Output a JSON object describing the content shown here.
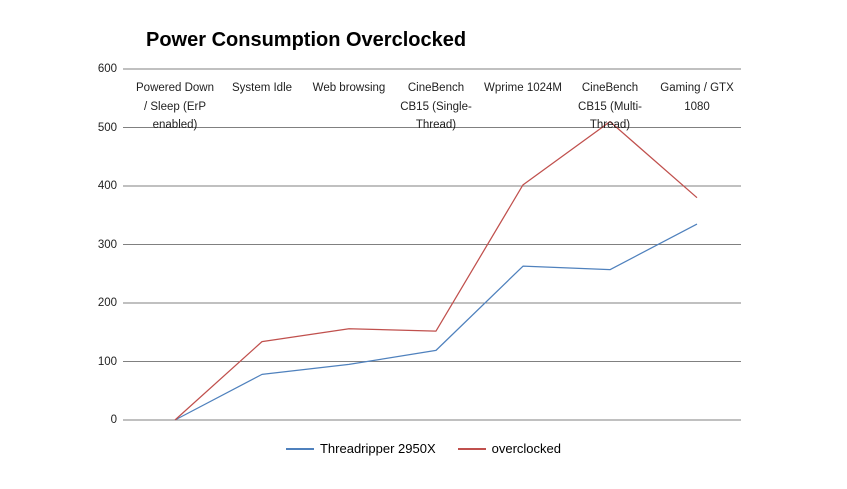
{
  "chart_data": {
    "type": "line",
    "title": "Power Consumption Overclocked",
    "categories": [
      "Powered Down / Sleep (ErP enabled)",
      "System Idle",
      "Web browsing",
      "CineBench CB15 (Single-Thread)",
      "Wprime 1024M",
      "CineBench CB15 (Multi-Thread)",
      "Gaming / GTX 1080"
    ],
    "category_label_lines": [
      [
        "Powered Down",
        "/ Sleep (ErP",
        "enabled)"
      ],
      [
        "System Idle"
      ],
      [
        "Web browsing"
      ],
      [
        "CineBench",
        "CB15 (Single-",
        "Thread)"
      ],
      [
        "Wprime 1024M"
      ],
      [
        "CineBench",
        "CB15 (Multi-",
        "Thread)"
      ],
      [
        "Gaming / GTX",
        "1080"
      ]
    ],
    "series": [
      {
        "name": "Threadripper 2950X",
        "color": "#4F81BD",
        "values": [
          0,
          78,
          95,
          119,
          263,
          257,
          335
        ]
      },
      {
        "name": "overclocked",
        "color": "#C0504D",
        "values": [
          0,
          134,
          156,
          152,
          402,
          510,
          380
        ]
      }
    ],
    "xlabel": "",
    "ylabel": "",
    "ylim": [
      0,
      600
    ],
    "y_ticks": [
      0,
      100,
      200,
      300,
      400,
      500,
      600
    ],
    "grid": "horizontal",
    "grid_color": "#808080",
    "legend_position": "bottom",
    "legend": [
      "Threadripper 2950X",
      "overclocked"
    ]
  }
}
